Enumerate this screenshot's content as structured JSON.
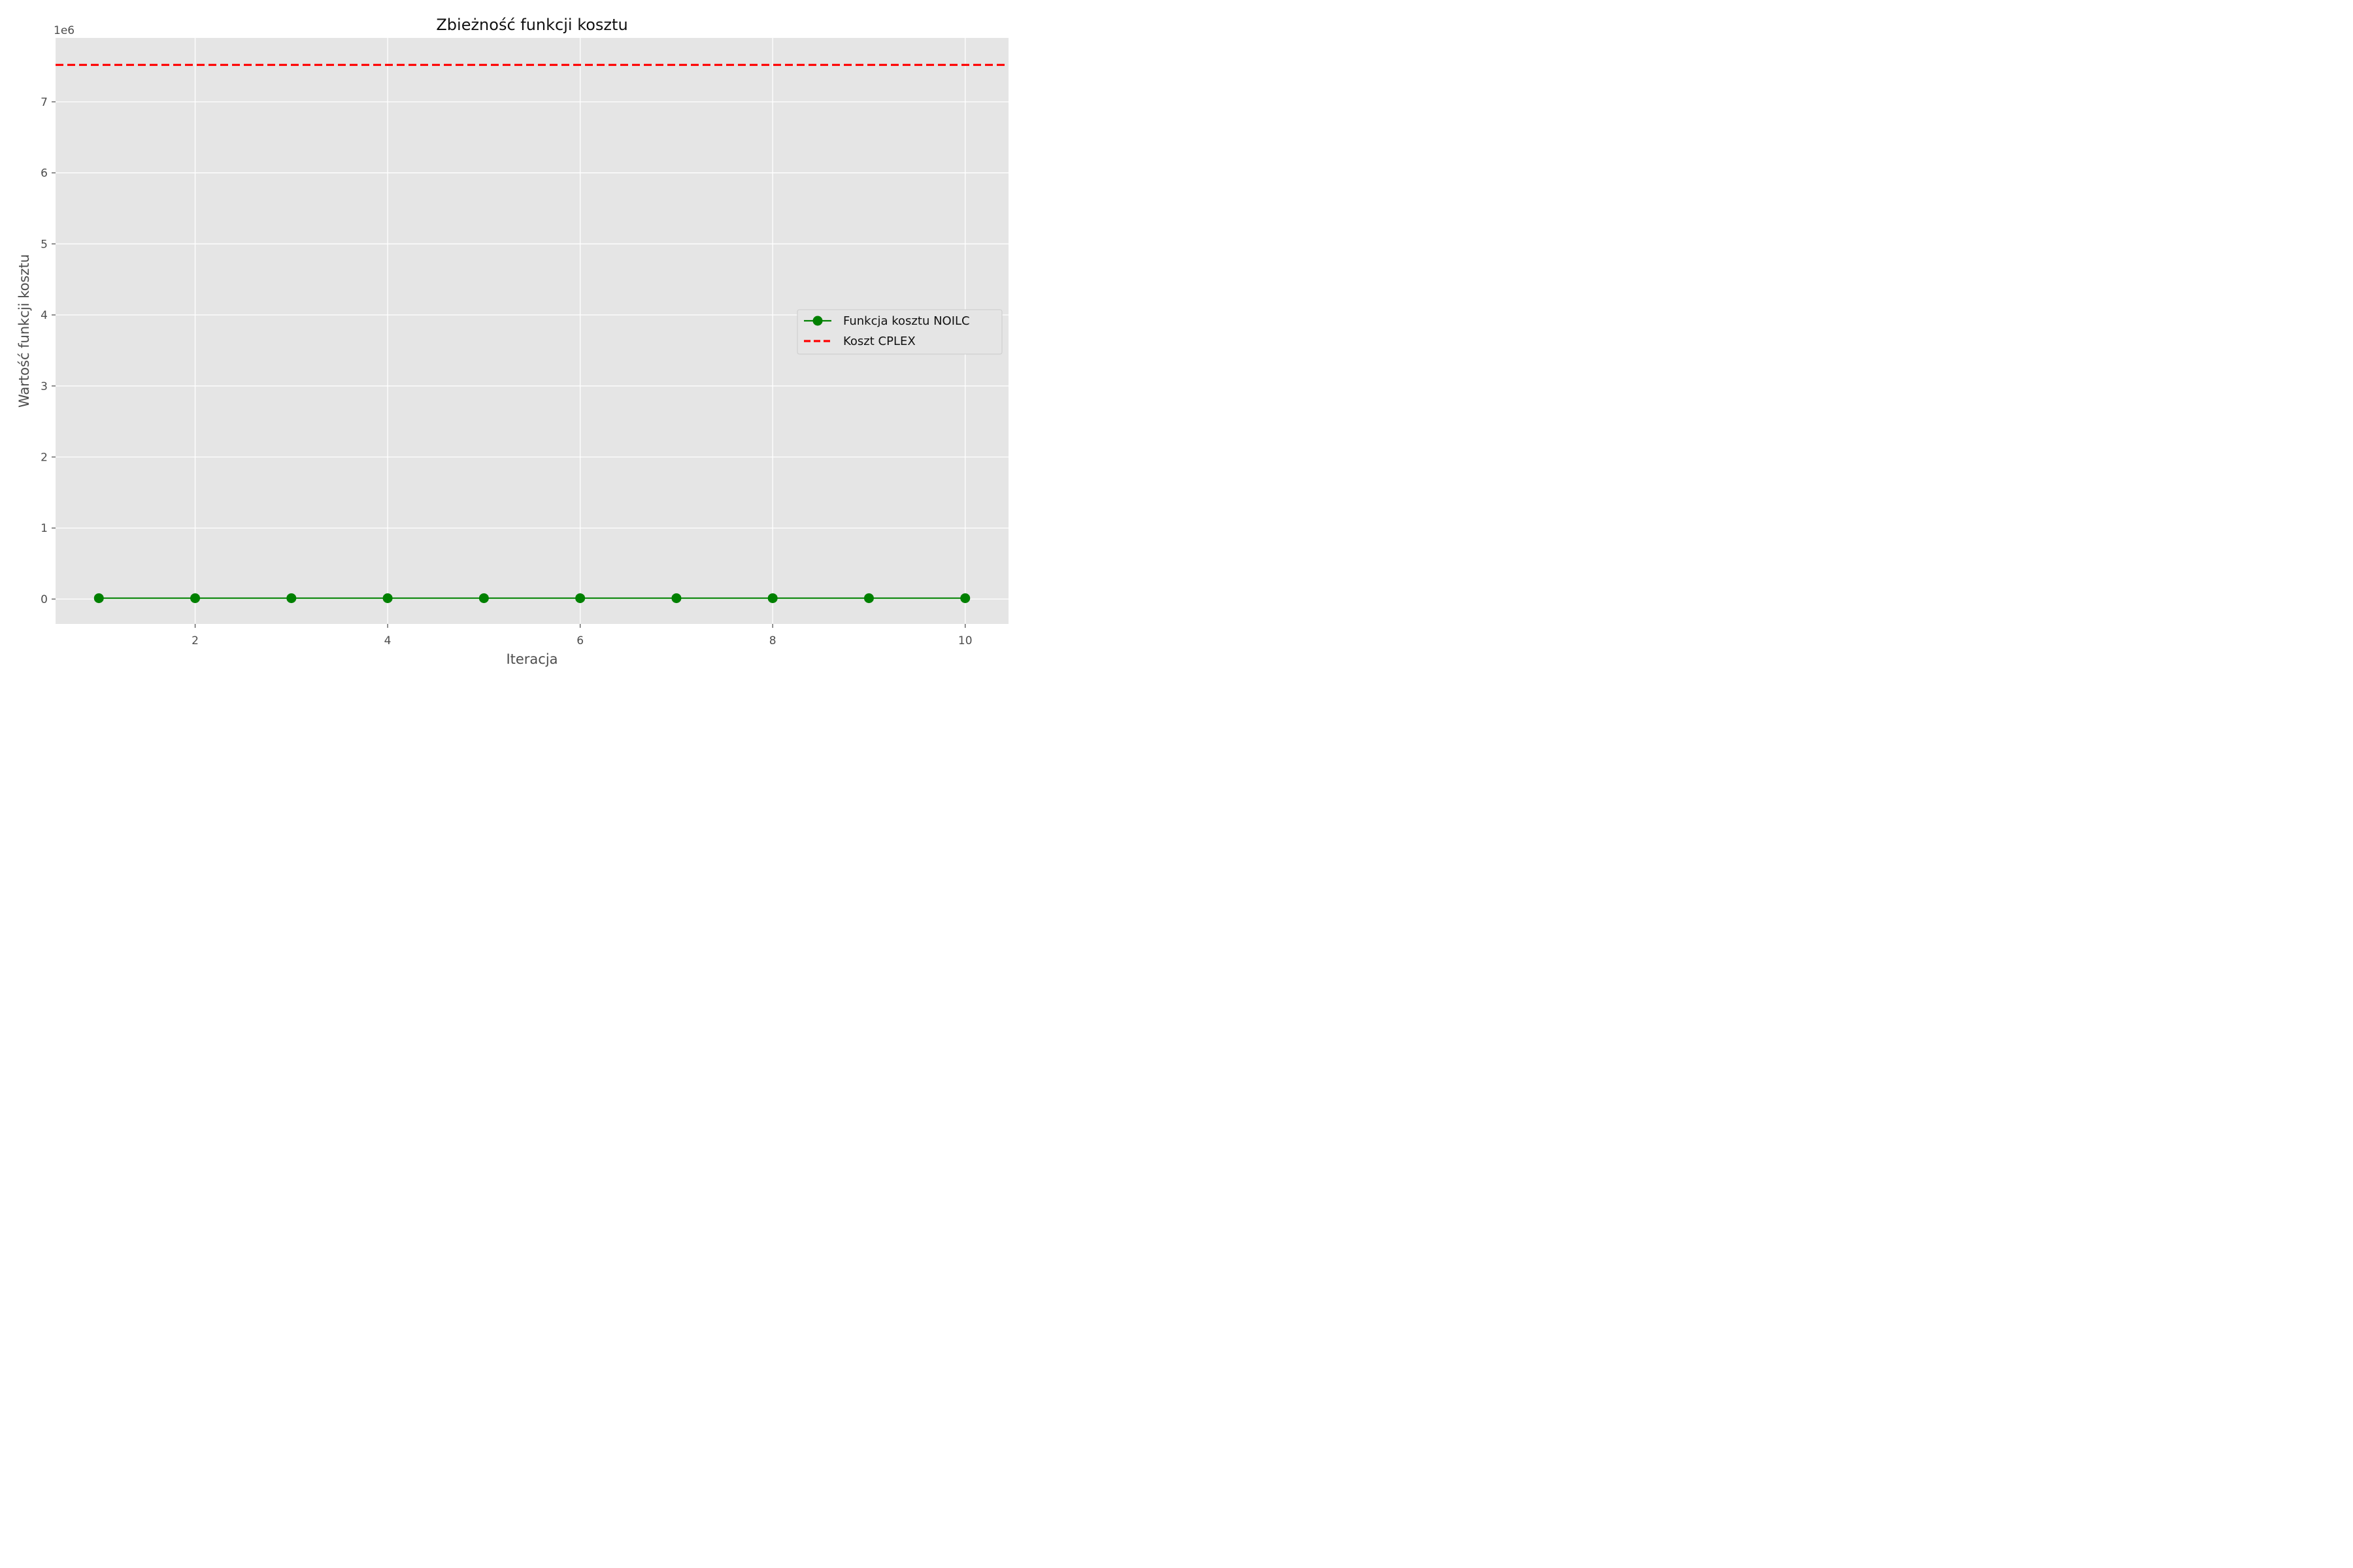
{
  "chart_data": {
    "type": "line",
    "title": "Zbieżność funkcji kosztu",
    "xlabel": "Iteracja",
    "ylabel": "Wartość funkcji kosztu",
    "y_offset_label": "1e6",
    "x": [
      1,
      2,
      3,
      4,
      5,
      6,
      7,
      8,
      9,
      10
    ],
    "xlim": [
      0.55,
      10.45
    ],
    "ylim": [
      -0.35,
      7.9
    ],
    "y_scale_note": "values in units of 1e6",
    "x_ticks": [
      2,
      4,
      6,
      8,
      10
    ],
    "y_ticks": [
      0,
      1,
      2,
      3,
      4,
      5,
      6,
      7
    ],
    "grid": true,
    "legend_position": "center-right",
    "series": [
      {
        "name": "Funkcja kosztu NOILC",
        "values": [
          0.0125,
          0.0125,
          0.0125,
          0.0125,
          0.0125,
          0.0125,
          0.0125,
          0.0125,
          0.0125,
          0.0125
        ],
        "color": "#008000",
        "style": "solid",
        "marker": "circle"
      },
      {
        "name": "Koszt CPLEX",
        "type": "hline",
        "value": 7.52,
        "color": "#ff0000",
        "style": "dashed"
      }
    ],
    "colors": {
      "plot_background": "#e5e5e5",
      "grid": "#ffffff"
    }
  }
}
